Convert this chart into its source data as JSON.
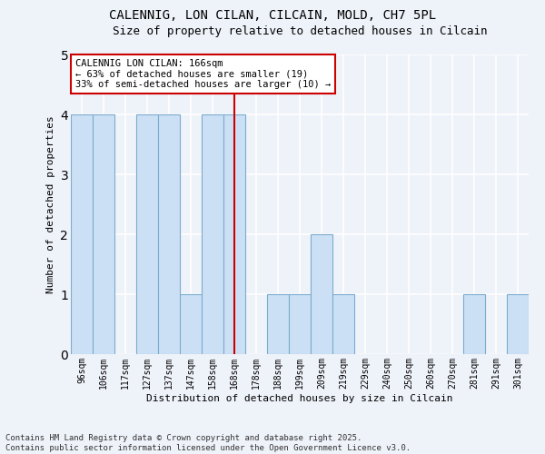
{
  "title": "CALENNIG, LON CILAN, CILCAIN, MOLD, CH7 5PL",
  "subtitle": "Size of property relative to detached houses in Cilcain",
  "xlabel": "Distribution of detached houses by size in Cilcain",
  "ylabel": "Number of detached properties",
  "bins": [
    "96sqm",
    "106sqm",
    "117sqm",
    "127sqm",
    "137sqm",
    "147sqm",
    "158sqm",
    "168sqm",
    "178sqm",
    "188sqm",
    "199sqm",
    "209sqm",
    "219sqm",
    "229sqm",
    "240sqm",
    "250sqm",
    "260sqm",
    "270sqm",
    "281sqm",
    "291sqm",
    "301sqm"
  ],
  "values": [
    4,
    4,
    0,
    4,
    4,
    1,
    4,
    4,
    0,
    1,
    1,
    2,
    1,
    0,
    0,
    0,
    0,
    0,
    1,
    0,
    1
  ],
  "bar_color": "#cce0f5",
  "bar_edge_color": "#7aacce",
  "vline_color": "#cc0000",
  "vline_x_index": 7,
  "annotation_text": "CALENNIG LON CILAN: 166sqm\n← 63% of detached houses are smaller (19)\n33% of semi-detached houses are larger (10) →",
  "annotation_box_facecolor": "#ffffff",
  "annotation_box_edgecolor": "#cc0000",
  "ylim": [
    0,
    5
  ],
  "yticks": [
    0,
    1,
    2,
    3,
    4,
    5
  ],
  "footer_text": "Contains HM Land Registry data © Crown copyright and database right 2025.\nContains public sector information licensed under the Open Government Licence v3.0.",
  "bg_color": "#eef2f9",
  "grid_color": "#ffffff",
  "title_fontsize": 10,
  "subtitle_fontsize": 9,
  "xlabel_fontsize": 8,
  "ylabel_fontsize": 8,
  "tick_fontsize": 7,
  "annot_fontsize": 7.5,
  "footer_fontsize": 6.5
}
